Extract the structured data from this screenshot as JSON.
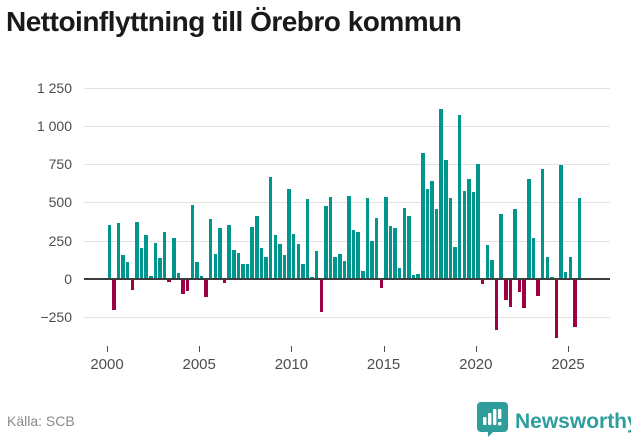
{
  "title": "Nettoinflyttning till Örebro kommun",
  "footer": {
    "source": "Källa: SCB",
    "brand_name": "Newsworthy"
  },
  "colors": {
    "positive_bar": "#00968e",
    "negative_bar": "#9e0044",
    "brand_teal": "#2e9e9d",
    "gridline": "#e2e2e2",
    "zero_line": "#3d3d3d",
    "title_text": "#1a1a1a",
    "axis_text": "#4d4d4d"
  },
  "chart_data": {
    "type": "bar",
    "title": "Nettoinflyttning till Örebro kommun",
    "xlabel": "",
    "ylabel": "",
    "frequency": "quarterly",
    "start_period": "2000Q1",
    "end_period": "2025Q3",
    "ylim": [
      -450,
      1300
    ],
    "grid": true,
    "yticks": [
      1250,
      1000,
      750,
      500,
      250,
      0,
      -250
    ],
    "ytick_labels": [
      "1 250",
      "1 000",
      "750",
      "500",
      "250",
      "0",
      "−250"
    ],
    "xticks": [
      2000,
      2005,
      2010,
      2015,
      2020,
      2025
    ],
    "xtick_labels": [
      "2000",
      "2005",
      "2010",
      "2015",
      "2020",
      "2025"
    ],
    "values": [
      350,
      -205,
      365,
      155,
      110,
      -70,
      370,
      205,
      290,
      20,
      235,
      135,
      310,
      -20,
      265,
      40,
      -95,
      -75,
      485,
      110,
      20,
      -115,
      395,
      165,
      330,
      -25,
      350,
      190,
      170,
      95,
      95,
      340,
      410,
      205,
      145,
      665,
      285,
      230,
      155,
      590,
      295,
      230,
      100,
      525,
      15,
      180,
      -215,
      480,
      535,
      145,
      165,
      115,
      540,
      320,
      310,
      50,
      530,
      250,
      400,
      -60,
      535,
      345,
      335,
      70,
      465,
      410,
      25,
      30,
      820,
      585,
      640,
      460,
      1110,
      775,
      530,
      210,
      1070,
      575,
      650,
      570,
      750,
      -30,
      225,
      125,
      -330,
      425,
      -140,
      -185,
      460,
      -82,
      -190,
      655,
      265,
      -108,
      718,
      145,
      15,
      -386,
      742,
      48,
      145,
      -310,
      530
    ]
  }
}
